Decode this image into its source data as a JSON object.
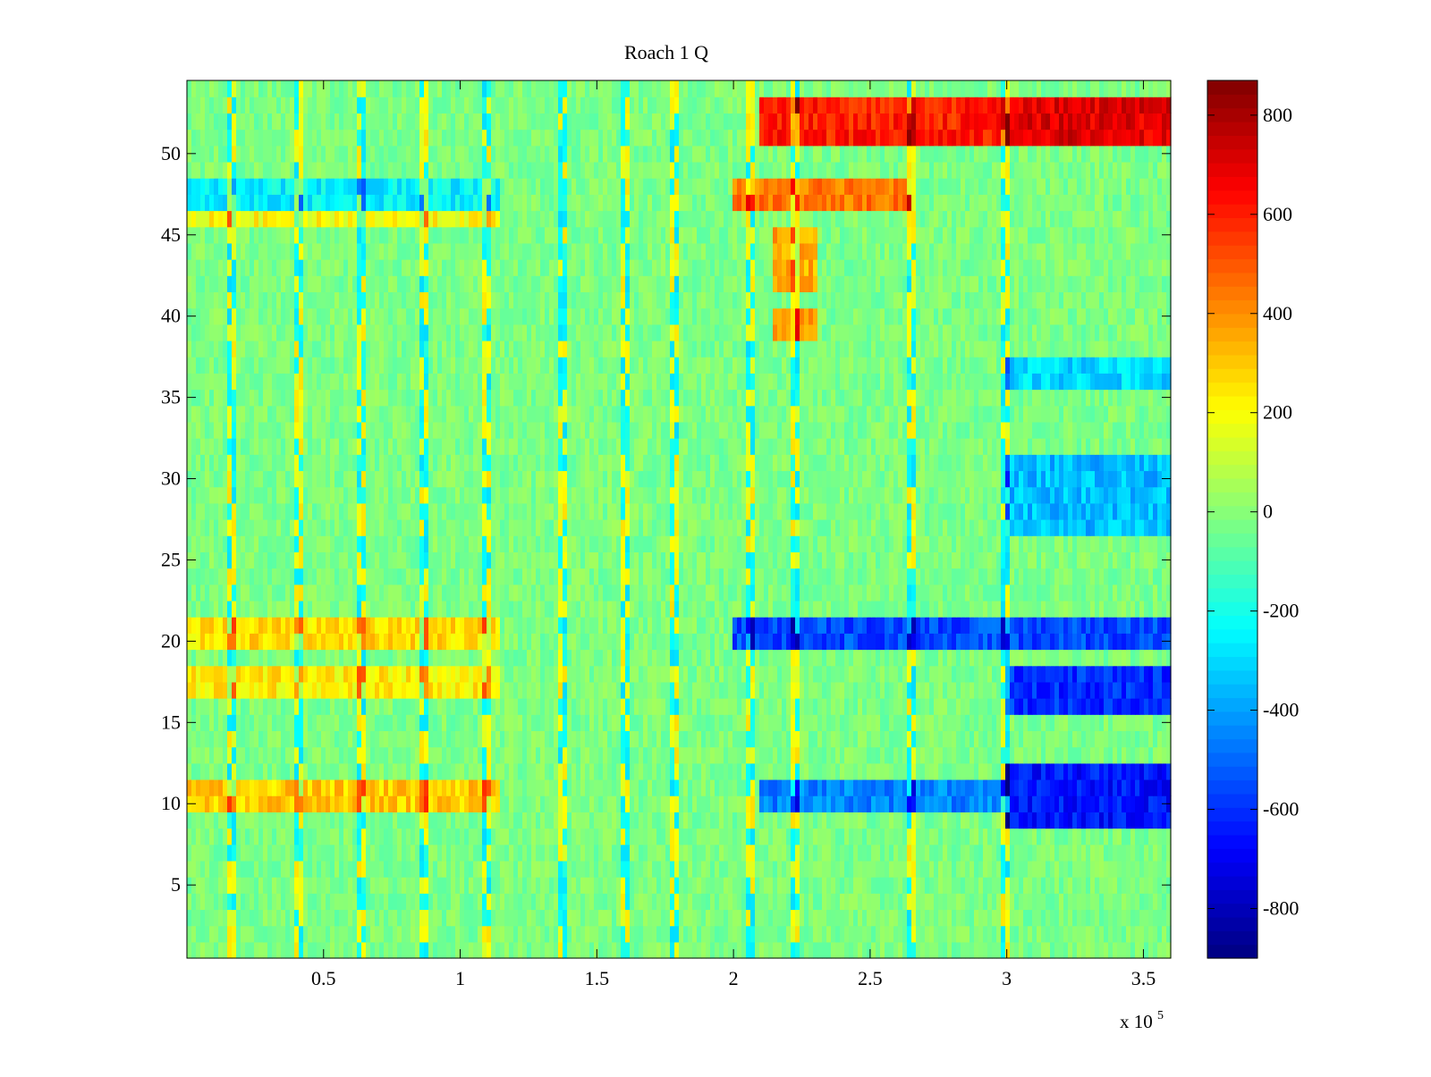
{
  "chart_data": {
    "type": "heatmap",
    "title": "Roach 1 Q",
    "xlabel": "",
    "ylabel": "",
    "xlim": [
      0,
      360000
    ],
    "ylim": [
      0.5,
      54.5
    ],
    "x_ticks": [
      0.5,
      1,
      1.5,
      2,
      2.5,
      3,
      3.5
    ],
    "x_tick_labels": [
      "0.5",
      "1",
      "1.5",
      "2",
      "2.5",
      "3",
      "3.5"
    ],
    "x_multiplier_label": "x 10",
    "x_multiplier_exponent": "5",
    "y_ticks": [
      5,
      10,
      15,
      20,
      25,
      30,
      35,
      40,
      45,
      50
    ],
    "y_tick_labels": [
      "5",
      "10",
      "15",
      "20",
      "25",
      "30",
      "35",
      "40",
      "45",
      "50"
    ],
    "rows": 54,
    "colormap": "jet",
    "colorbar": {
      "range": [
        -900,
        870
      ],
      "ticks": [
        800,
        600,
        400,
        200,
        0,
        -200,
        -400,
        -600,
        -800
      ],
      "tick_labels": [
        "800",
        "600",
        "400",
        "200",
        "0",
        "-200",
        "-400",
        "-600",
        "-800"
      ]
    },
    "regions": [
      {
        "rows": [
          51,
          53
        ],
        "x": [
          210000,
          300000
        ],
        "value": 600
      },
      {
        "rows": [
          51,
          53
        ],
        "x": [
          300000,
          360000
        ],
        "value": 700
      },
      {
        "rows": [
          47,
          48
        ],
        "x": [
          0,
          115000
        ],
        "value": -250
      },
      {
        "rows": [
          47,
          48
        ],
        "x": [
          200000,
          265000
        ],
        "value": 450
      },
      {
        "rows": [
          46,
          46
        ],
        "x": [
          0,
          115000
        ],
        "value": 200
      },
      {
        "rows": [
          42,
          45
        ],
        "x": [
          215000,
          230000
        ],
        "value": 350
      },
      {
        "rows": [
          39,
          40
        ],
        "x": [
          215000,
          230000
        ],
        "value": 400
      },
      {
        "rows": [
          20,
          21
        ],
        "x": [
          0,
          115000
        ],
        "value": 260
      },
      {
        "rows": [
          17,
          18
        ],
        "x": [
          0,
          115000
        ],
        "value": 230
      },
      {
        "rows": [
          10,
          11
        ],
        "x": [
          0,
          115000
        ],
        "value": 290
      },
      {
        "rows": [
          20,
          21
        ],
        "x": [
          200000,
          360000
        ],
        "value": -550
      },
      {
        "rows": [
          16,
          18
        ],
        "x": [
          300000,
          360000
        ],
        "value": -600
      },
      {
        "rows": [
          9,
          12
        ],
        "x": [
          300000,
          360000
        ],
        "value": -650
      },
      {
        "rows": [
          10,
          11
        ],
        "x": [
          210000,
          300000
        ],
        "value": -450
      },
      {
        "rows": [
          27,
          31
        ],
        "x": [
          300000,
          360000
        ],
        "value": -350
      },
      {
        "rows": [
          36,
          37
        ],
        "x": [
          300000,
          360000
        ],
        "value": -300
      }
    ]
  }
}
